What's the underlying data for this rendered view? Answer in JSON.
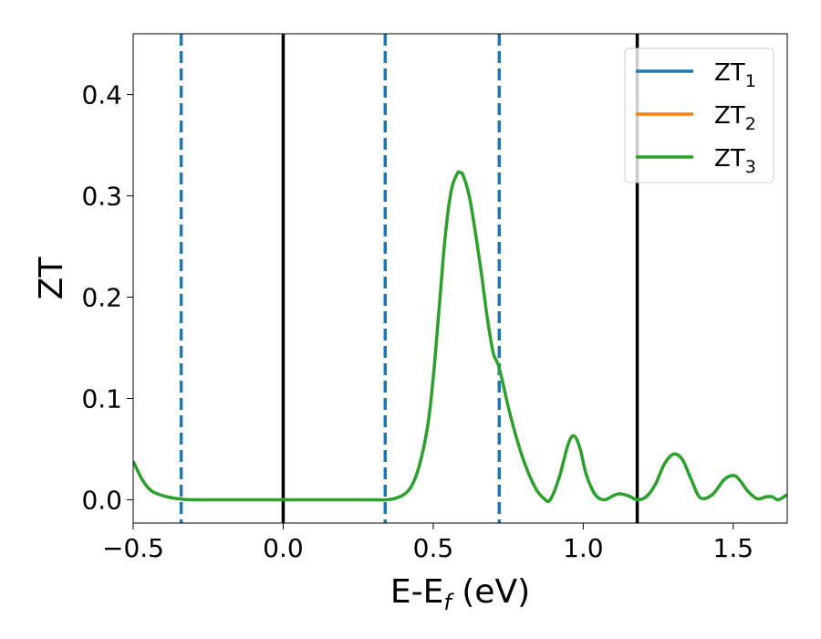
{
  "chart_data": {
    "type": "line",
    "xlabel": "E-E",
    "xlabel_sub": "f",
    "xlabel_unit": " (eV)",
    "ylabel": "ZT",
    "xlim": [
      -0.5,
      1.68
    ],
    "ylim": [
      -0.023,
      0.46
    ],
    "xticks": [
      -0.5,
      0.0,
      0.5,
      1.0,
      1.5
    ],
    "xtick_labels": [
      "−0.5",
      "0.0",
      "0.5",
      "1.0",
      "1.5"
    ],
    "yticks": [
      0.0,
      0.1,
      0.2,
      0.3,
      0.4
    ],
    "ytick_labels": [
      "0.0",
      "0.1",
      "0.2",
      "0.3",
      "0.4"
    ],
    "grid": false,
    "legend_position": "top-right",
    "series": [
      {
        "name": "ZT",
        "name_sub": "1",
        "color": "#1f77b4"
      },
      {
        "name": "ZT",
        "name_sub": "2",
        "color": "#ff7f0e"
      },
      {
        "name": "ZT",
        "name_sub": "3",
        "color": "#2ca02c"
      }
    ],
    "curve": {
      "color": "#2ca02c",
      "x": [
        -0.5,
        -0.47,
        -0.44,
        -0.4,
        -0.35,
        -0.3,
        -0.2,
        0.0,
        0.2,
        0.3,
        0.34,
        0.38,
        0.42,
        0.45,
        0.48,
        0.5,
        0.52,
        0.54,
        0.56,
        0.58,
        0.59,
        0.6,
        0.62,
        0.64,
        0.66,
        0.68,
        0.7,
        0.72,
        0.76,
        0.8,
        0.84,
        0.87,
        0.89,
        0.92,
        0.95,
        0.97,
        0.99,
        1.01,
        1.04,
        1.07,
        1.1,
        1.12,
        1.15,
        1.18,
        1.21,
        1.24,
        1.27,
        1.3,
        1.33,
        1.36,
        1.39,
        1.43,
        1.47,
        1.5,
        1.52,
        1.55,
        1.58,
        1.61,
        1.63,
        1.65,
        1.68
      ],
      "y": [
        0.038,
        0.02,
        0.009,
        0.004,
        0.001,
        0.0,
        0.0,
        0.0,
        0.0,
        0.0,
        0.0,
        0.002,
        0.01,
        0.03,
        0.07,
        0.12,
        0.19,
        0.26,
        0.305,
        0.322,
        0.323,
        0.32,
        0.3,
        0.265,
        0.225,
        0.18,
        0.145,
        0.13,
        0.08,
        0.04,
        0.012,
        0.001,
        0.0,
        0.022,
        0.055,
        0.063,
        0.05,
        0.025,
        0.005,
        0.0,
        0.004,
        0.006,
        0.004,
        0.0,
        0.003,
        0.015,
        0.035,
        0.045,
        0.04,
        0.02,
        0.002,
        0.005,
        0.02,
        0.024,
        0.02,
        0.008,
        0.001,
        0.003,
        0.003,
        0.0,
        0.005
      ]
    },
    "vlines": [
      {
        "x": -0.34,
        "style": "dashed",
        "color": "#1f77b4"
      },
      {
        "x": 0.0,
        "style": "solid",
        "color": "#000000"
      },
      {
        "x": 0.34,
        "style": "dashed",
        "color": "#1f77b4"
      },
      {
        "x": 0.72,
        "style": "dashed",
        "color": "#1f77b4"
      },
      {
        "x": 1.18,
        "style": "solid",
        "color": "#000000"
      }
    ]
  }
}
